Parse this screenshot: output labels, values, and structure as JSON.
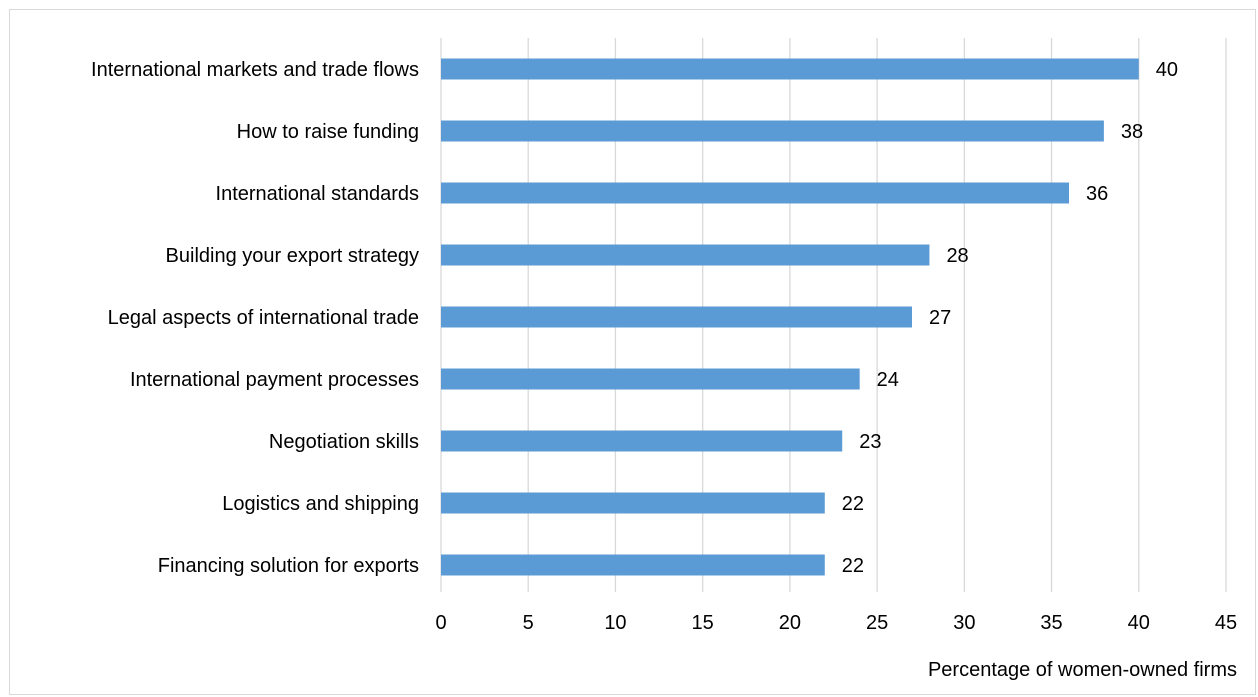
{
  "chart_data": {
    "type": "bar",
    "orientation": "horizontal",
    "title": "",
    "xlabel": "Percentage of women-owned firms",
    "ylabel": "",
    "categories": [
      "International markets and trade flows",
      "How to raise funding",
      "International standards",
      "Building your export strategy",
      "Legal aspects of international trade",
      "International payment processes",
      "Negotiation skills",
      "Logistics and shipping",
      "Financing solution for exports"
    ],
    "values": [
      40,
      38,
      36,
      28,
      27,
      24,
      23,
      22,
      22
    ],
    "data_labels": [
      "40",
      "38",
      "36",
      "28",
      "27",
      "24",
      "23",
      "22",
      "22"
    ],
    "xlim": [
      0,
      45
    ],
    "xticks": [
      0,
      5,
      10,
      15,
      20,
      25,
      30,
      35,
      40,
      45
    ],
    "bar_color": "#5b9bd5",
    "grid": true,
    "legend": "none"
  }
}
